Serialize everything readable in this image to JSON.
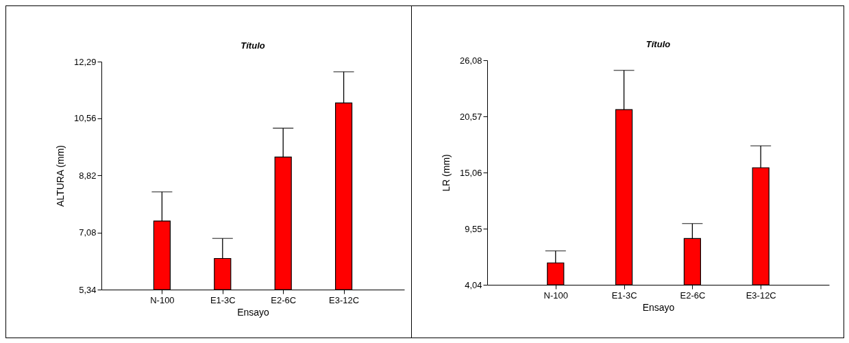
{
  "chart_data": [
    {
      "type": "bar",
      "title": "Título",
      "xlabel": "Ensayo",
      "ylabel": "ALTURA (mm)",
      "categories": [
        "N-100",
        "E1-3C",
        "E2-6C",
        "E3-12C"
      ],
      "series": [
        {
          "color": "#ff0000",
          "values": [
            7.43,
            6.29,
            9.38,
            11.03
          ],
          "errors": [
            [
              7.43,
              8.32
            ],
            [
              6.29,
              6.9
            ],
            [
              9.38,
              10.26
            ],
            [
              11.03,
              11.98
            ]
          ]
        }
      ],
      "ylim": [
        5.34,
        12.29
      ],
      "yticks": [
        {
          "value": 5.34,
          "label": "5,34"
        },
        {
          "value": 7.08,
          "label": "7,08"
        },
        {
          "value": 8.82,
          "label": "8,82"
        },
        {
          "value": 10.56,
          "label": "10,56"
        },
        {
          "value": 12.29,
          "label": "12,29"
        }
      ],
      "grid": false
    },
    {
      "type": "bar",
      "title": "Título",
      "xlabel": "Ensayo",
      "ylabel": "LR (mm)",
      "categories": [
        "N-100",
        "E1-3C",
        "E2-6C",
        "E3-12C"
      ],
      "series": [
        {
          "color": "#ff0000",
          "values": [
            6.19,
            21.24,
            8.58,
            15.53
          ],
          "errors": [
            [
              6.19,
              7.37
            ],
            [
              21.24,
              25.09
            ],
            [
              8.58,
              10.05
            ],
            [
              15.53,
              17.68
            ]
          ]
        }
      ],
      "ylim": [
        4.04,
        26.08
      ],
      "yticks": [
        {
          "value": 4.04,
          "label": "4,04"
        },
        {
          "value": 9.55,
          "label": "9,55"
        },
        {
          "value": 15.06,
          "label": "15,06"
        },
        {
          "value": 20.57,
          "label": "20,57"
        },
        {
          "value": 26.08,
          "label": "26,08"
        }
      ],
      "grid": false
    }
  ]
}
